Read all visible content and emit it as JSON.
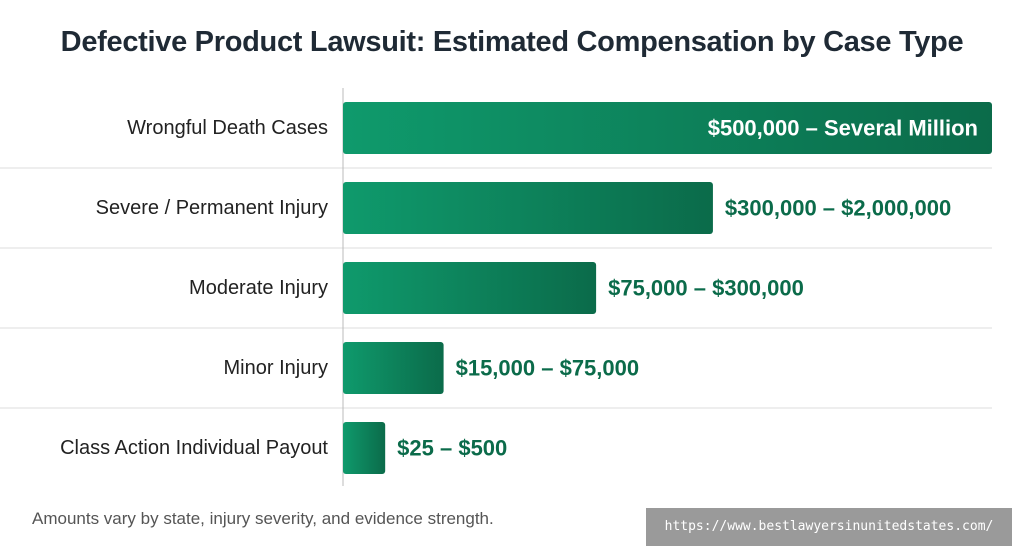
{
  "chart_data": {
    "type": "bar",
    "orientation": "horizontal",
    "title": "Defective Product Lawsuit: Estimated Compensation by Case Type",
    "categories": [
      "Wrongful Death Cases",
      "Severe / Permanent Injury",
      "Moderate Injury",
      "Minor Injury",
      "Class Action Individual Payout"
    ],
    "values": [
      1.0,
      0.57,
      0.39,
      0.155,
      0.065
    ],
    "value_note": "bar lengths are relative (fraction of the longest bar); no numeric axis is printed",
    "value_labels": [
      "$500,000 – Several Million",
      "$300,000 – $2,000,000",
      "$75,000 – $300,000",
      "$15,000 – $75,000",
      "$25 – $500"
    ],
    "xlabel": "",
    "ylabel": "",
    "grid": true,
    "legend": "none"
  },
  "footnote": "Amounts vary by state, injury severity, and evidence strength.",
  "source_url": "https://www.bestlawyersinunitedstates.com/",
  "colors": {
    "bar_light": "#0f9a6c",
    "bar_dark": "#0b6b4a",
    "value_text": "#0b6b4a",
    "label_inside": "#ffffff",
    "title": "#1f2a35",
    "gridline": "#dddddd",
    "axis": "#bbbbbb"
  }
}
